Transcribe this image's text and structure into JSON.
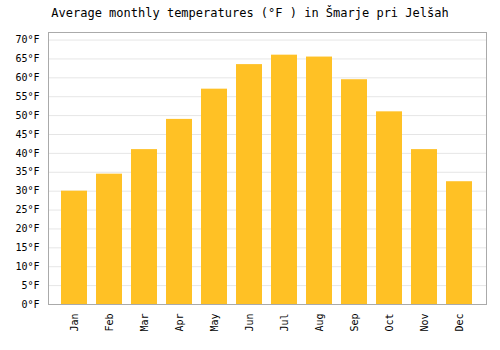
{
  "chart_data": {
    "type": "bar",
    "title": "Average monthly temperatures (°F ) in Šmarje pri Jelšah",
    "categories": [
      "Jan",
      "Feb",
      "Mar",
      "Apr",
      "May",
      "Jun",
      "Jul",
      "Aug",
      "Sep",
      "Oct",
      "Nov",
      "Dec"
    ],
    "values": [
      30,
      34.5,
      41,
      49,
      57,
      63.5,
      66,
      65.5,
      59.5,
      51,
      41,
      32.5
    ],
    "color": "#FFC125",
    "ylim": [
      0,
      72
    ],
    "yticks": [
      {
        "value": 0,
        "label": "0°F"
      },
      {
        "value": 5,
        "label": "5°F"
      },
      {
        "value": 10,
        "label": "10°F"
      },
      {
        "value": 15,
        "label": "15°F"
      },
      {
        "value": 20,
        "label": "20°F"
      },
      {
        "value": 25,
        "label": "25°F"
      },
      {
        "value": 30,
        "label": "30°F"
      },
      {
        "value": 35,
        "label": "35°F"
      },
      {
        "value": 40,
        "label": "40°F"
      },
      {
        "value": 45,
        "label": "45°F"
      },
      {
        "value": 50,
        "label": "50°F"
      },
      {
        "value": 55,
        "label": "55°F"
      },
      {
        "value": 60,
        "label": "60°F"
      },
      {
        "value": 65,
        "label": "65°F"
      },
      {
        "value": 70,
        "label": "70°F"
      }
    ],
    "grid": true
  }
}
